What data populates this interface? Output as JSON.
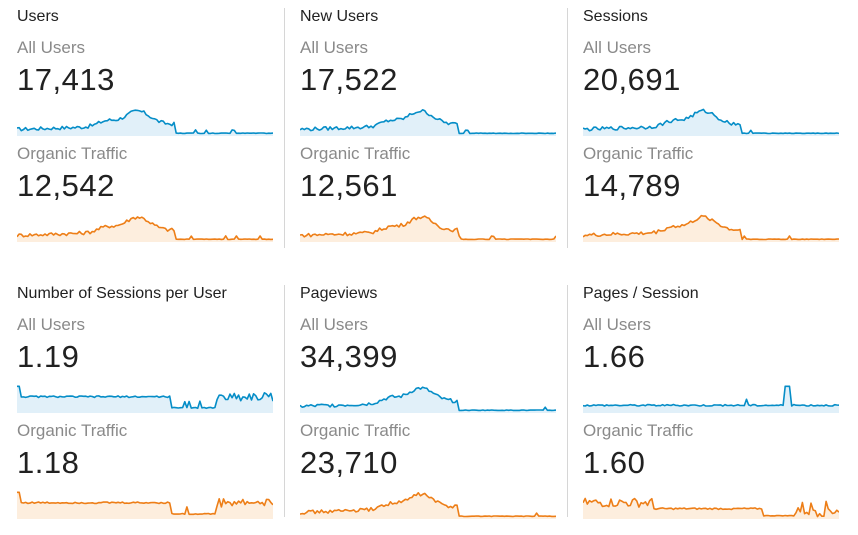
{
  "cards": [
    {
      "title": "Users",
      "segments": [
        {
          "label": "All Users",
          "value": "17,413",
          "color": "#058dc7",
          "fill": "#e1f0f9",
          "pattern": "hump"
        },
        {
          "label": "Organic Traffic",
          "value": "12,542",
          "color": "#ed7e17",
          "fill": "#fdeede",
          "pattern": "hump"
        }
      ]
    },
    {
      "title": "New Users",
      "segments": [
        {
          "label": "All Users",
          "value": "17,522",
          "color": "#058dc7",
          "fill": "#e1f0f9",
          "pattern": "hump"
        },
        {
          "label": "Organic Traffic",
          "value": "12,561",
          "color": "#ed7e17",
          "fill": "#fdeede",
          "pattern": "hump"
        }
      ]
    },
    {
      "title": "Sessions",
      "segments": [
        {
          "label": "All Users",
          "value": "20,691",
          "color": "#058dc7",
          "fill": "#e1f0f9",
          "pattern": "hump"
        },
        {
          "label": "Organic Traffic",
          "value": "14,789",
          "color": "#ed7e17",
          "fill": "#fdeede",
          "pattern": "hump"
        }
      ]
    },
    {
      "title": "Number of Sessions per User",
      "segments": [
        {
          "label": "All Users",
          "value": "1.19",
          "color": "#058dc7",
          "fill": "#e1f0f9",
          "pattern": "plateau"
        },
        {
          "label": "Organic Traffic",
          "value": "1.18",
          "color": "#ed7e17",
          "fill": "#fdeede",
          "pattern": "plateau"
        }
      ]
    },
    {
      "title": "Pageviews",
      "segments": [
        {
          "label": "All Users",
          "value": "34,399",
          "color": "#058dc7",
          "fill": "#e1f0f9",
          "pattern": "hump"
        },
        {
          "label": "Organic Traffic",
          "value": "23,710",
          "color": "#ed7e17",
          "fill": "#fdeede",
          "pattern": "hump"
        }
      ]
    },
    {
      "title": "Pages / Session",
      "segments": [
        {
          "label": "All Users",
          "value": "1.66",
          "color": "#058dc7",
          "fill": "#e1f0f9",
          "pattern": "flat-spike"
        },
        {
          "label": "Organic Traffic",
          "value": "1.60",
          "color": "#ed7e17",
          "fill": "#fdeede",
          "pattern": "step-down"
        }
      ]
    }
  ]
}
